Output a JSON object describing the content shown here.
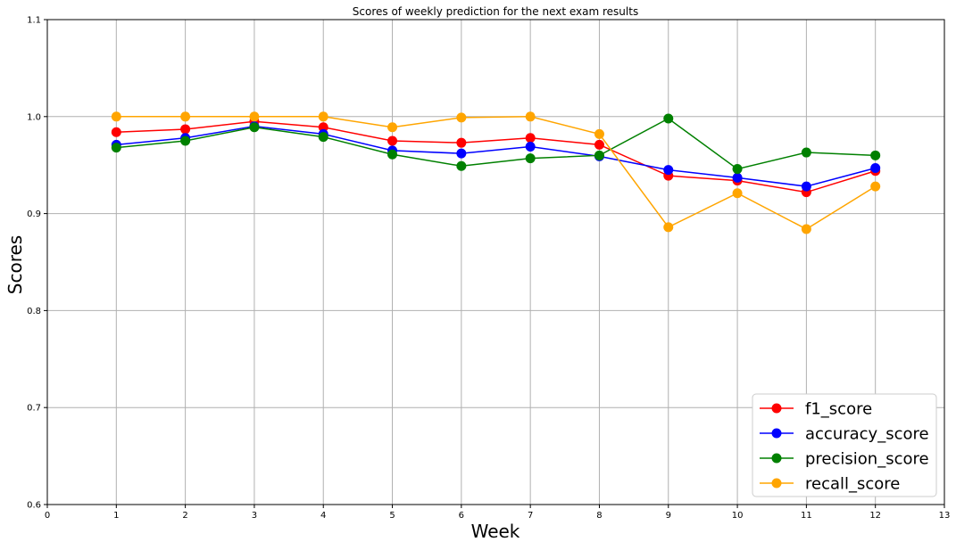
{
  "chart_data": {
    "type": "line",
    "title": "Scores of weekly prediction for the next exam results",
    "xlabel": "Week",
    "ylabel": "Scores",
    "xlim": [
      0,
      13
    ],
    "ylim": [
      0.6,
      1.1
    ],
    "xticks": [
      "0",
      "1",
      "2",
      "3",
      "4",
      "5",
      "6",
      "7",
      "8",
      "9",
      "10",
      "11",
      "12",
      "13"
    ],
    "yticks": [
      "0.6",
      "0.7",
      "0.8",
      "0.9",
      "1.0",
      "1.1"
    ],
    "grid": true,
    "legend_position": "lower-right",
    "x": [
      1,
      2,
      3,
      4,
      5,
      6,
      7,
      8,
      9,
      10,
      11,
      12
    ],
    "series": [
      {
        "name": "f1_score",
        "color": "#ff0000",
        "values": [
          0.984,
          0.987,
          0.995,
          0.989,
          0.975,
          0.973,
          0.978,
          0.971,
          0.939,
          0.934,
          0.922,
          0.944
        ]
      },
      {
        "name": "accuracy_score",
        "color": "#0000ff",
        "values": [
          0.971,
          0.978,
          0.99,
          0.982,
          0.965,
          0.962,
          0.969,
          0.959,
          0.945,
          0.937,
          0.928,
          0.947
        ]
      },
      {
        "name": "precision_score",
        "color": "#008000",
        "values": [
          0.968,
          0.975,
          0.989,
          0.979,
          0.961,
          0.949,
          0.957,
          0.96,
          0.998,
          0.946,
          0.963,
          0.96
        ]
      },
      {
        "name": "recall_score",
        "color": "#ffa500",
        "values": [
          1.0,
          1.0,
          1.0,
          1.0,
          0.989,
          0.999,
          1.0,
          0.982,
          0.886,
          0.921,
          0.884,
          0.928
        ]
      }
    ]
  }
}
